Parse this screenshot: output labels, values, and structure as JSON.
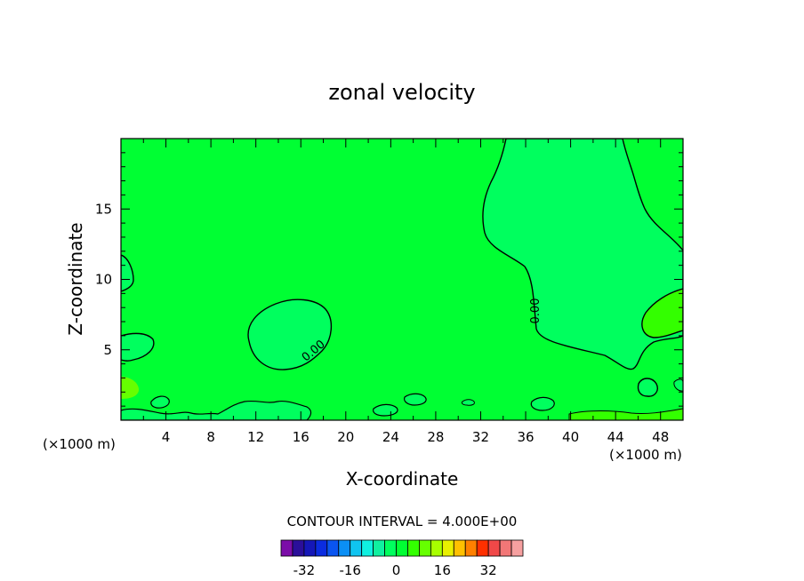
{
  "chart_data": {
    "type": "contour",
    "title": "zonal velocity",
    "xlabel": "X-coordinate",
    "ylabel": "Z-coordinate",
    "x_unit_left": "(×1000 m)",
    "x_unit_right": "(×1000 m)",
    "xlim": [
      0,
      50
    ],
    "ylim": [
      0,
      20
    ],
    "x_ticks": [
      4,
      8,
      12,
      16,
      20,
      24,
      28,
      32,
      36,
      40,
      44,
      48
    ],
    "y_ticks": [
      5,
      10,
      15
    ],
    "contour_interval_text": "CONTOUR INTERVAL = 4.000E+00",
    "contour_labels": [
      "0.00",
      "0.00"
    ],
    "colorbar": {
      "levels": [
        -36,
        -32,
        -28,
        -24,
        -20,
        -16,
        -12,
        -8,
        -4,
        0,
        4,
        8,
        12,
        16,
        20,
        24,
        28,
        32,
        36
      ],
      "colors": [
        "#7b0da8",
        "#2b0f9a",
        "#1517b8",
        "#0b2ce0",
        "#0a55f0",
        "#0b8ff5",
        "#10c4f0",
        "#10f0e0",
        "#10f0a0",
        "#00ff5e",
        "#00ff33",
        "#33ff00",
        "#66ff00",
        "#a8ff00",
        "#e8f000",
        "#ffc000",
        "#ff8000",
        "#ff3000",
        "#f04848",
        "#f27777",
        "#f6a0a0"
      ],
      "tick_labels": [
        "-32",
        "-16",
        "0",
        "16",
        "32"
      ],
      "tick_values": [
        -32,
        -16,
        0,
        16,
        32
      ]
    },
    "fill_colors": {
      "background": "#00ff33",
      "region_negative": "#00ff5e",
      "region_positive": "#33ff00",
      "region_deep_negative": "#10f0a0"
    }
  }
}
